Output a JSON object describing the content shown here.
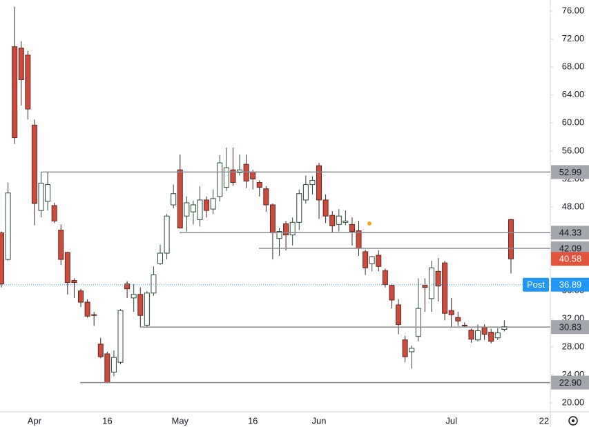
{
  "chart_data": {
    "type": "candlestick",
    "categories": [
      null,
      null,
      null,
      null,
      null,
      "Apr",
      null,
      null,
      null,
      null,
      null,
      null,
      null,
      null,
      null,
      null,
      "16",
      null,
      null,
      null,
      null,
      null,
      null,
      null,
      null,
      null,
      null,
      "May",
      null,
      null,
      null,
      null,
      null,
      null,
      null,
      null,
      null,
      null,
      "16",
      null,
      null,
      null,
      null,
      null,
      null,
      null,
      null,
      null,
      "Jun",
      null,
      null,
      null,
      null,
      null,
      null,
      null,
      null,
      null,
      null,
      null,
      null,
      null,
      null,
      null,
      null,
      null,
      null,
      null,
      "Jul",
      null,
      null,
      null,
      null,
      null,
      null,
      null,
      null,
      null,
      null,
      null,
      null,
      null,
      "22"
    ],
    "open": [
      44.3,
      40.5,
      70.9,
      70.7,
      69.7,
      59.7,
      47.5,
      48.8,
      48.2,
      44.7,
      41.5,
      37.5,
      36.0,
      34.4,
      32.6,
      28.4,
      27.0,
      24.4,
      25.8,
      37.0,
      35.0,
      35.5,
      31.1,
      35.7,
      39.9,
      41.4,
      48.3,
      53.3,
      46.7,
      47.3,
      46.2,
      49.0,
      47.7,
      49.5,
      50.8,
      53.3,
      52.9,
      54.1,
      53.0,
      51.5,
      50.6,
      48.3,
      43.5,
      45.6,
      44.0,
      45.8,
      49.0,
      51.2,
      53.9,
      49.0,
      46.8,
      45.5,
      45.8,
      45.5,
      44.6,
      41.6,
      39.9,
      41.1,
      38.9,
      36.8,
      34.0,
      29.0,
      27.3,
      29.5,
      36.8,
      34.9,
      38.8,
      40.0,
      33.2,
      32.2,
      31.1,
      30.4,
      29.0,
      30.8,
      30.1,
      29.3,
      30.5,
      46.2,
      null,
      null,
      null,
      null,
      null
    ],
    "high": [
      44.5,
      51.5,
      76.6,
      71.7,
      70.3,
      60.5,
      53.0,
      53.0,
      48.6,
      45.5,
      41.6,
      37.8,
      36.3,
      34.8,
      33.0,
      29.3,
      27.3,
      27.5,
      33.4,
      37.4,
      37.0,
      36.5,
      36.0,
      39.5,
      42.6,
      47.0,
      51.2,
      55.5,
      49.5,
      48.9,
      51.0,
      49.5,
      50.5,
      55.4,
      56.5,
      56.5,
      55.5,
      55.5,
      53.3,
      51.8,
      51.0,
      48.5,
      45.0,
      46.0,
      46.5,
      50.5,
      52.5,
      52.4,
      54.3,
      49.8,
      47.4,
      47.7,
      47.5,
      46.5,
      46.0,
      41.9,
      41.0,
      41.8,
      39.2,
      37.0,
      34.8,
      29.6,
      28.2,
      37.8,
      37.8,
      40.3,
      40.7,
      40.3,
      35.0,
      33.0,
      31.5,
      30.6,
      31.2,
      31.2,
      30.6,
      30.7,
      31.8,
      46.3,
      null,
      null,
      null,
      null,
      null
    ],
    "low": [
      36.5,
      40.3,
      57.0,
      62.5,
      60.5,
      45.4,
      46.5,
      47.5,
      45.7,
      39.7,
      35.5,
      35.0,
      33.7,
      32.2,
      31.0,
      26.4,
      22.8,
      23.8,
      25.5,
      35.0,
      33.0,
      30.9,
      30.9,
      35.3,
      39.7,
      40.5,
      47.8,
      44.9,
      44.5,
      45.5,
      45.2,
      46.5,
      47.0,
      48.8,
      50.3,
      51.0,
      52.5,
      50.7,
      50.5,
      49.5,
      47.3,
      40.5,
      41.0,
      41.8,
      42.5,
      44.7,
      48.5,
      49.8,
      46.3,
      45.7,
      44.4,
      44.5,
      45.4,
      42.5,
      41.0,
      38.3,
      38.8,
      38.8,
      36.5,
      33.5,
      29.8,
      25.8,
      24.9,
      28.8,
      33.0,
      33.0,
      34.5,
      31.8,
      30.9,
      31.0,
      30.8,
      28.6,
      28.8,
      29.0,
      28.5,
      29.0,
      30.2,
      38.5,
      null,
      null,
      null,
      null,
      null
    ],
    "close": [
      37.0,
      50.0,
      57.9,
      66.2,
      62.0,
      48.5,
      51.4,
      51.2,
      46.0,
      40.5,
      37.2,
      37.2,
      34.4,
      32.4,
      32.5,
      26.6,
      22.9,
      26.5,
      33.2,
      36.3,
      35.5,
      32.5,
      35.7,
      38.3,
      41.4,
      46.7,
      49.9,
      45.0,
      48.6,
      48.3,
      49.0,
      47.5,
      49.2,
      54.3,
      53.6,
      51.5,
      53.3,
      51.7,
      52.0,
      50.8,
      48.3,
      44.3,
      44.5,
      44.0,
      45.8,
      49.9,
      51.2,
      51.8,
      49.0,
      46.7,
      45.3,
      46.7,
      46.0,
      44.5,
      42.1,
      39.3,
      40.9,
      39.5,
      36.9,
      34.7,
      31.2,
      26.6,
      27.8,
      33.5,
      36.5,
      39.3,
      36.7,
      32.8,
      32.6,
      31.7,
      31.0,
      29.1,
      30.3,
      29.8,
      28.8,
      30.0,
      30.9,
      40.58,
      null,
      null,
      null,
      null,
      null
    ],
    "up_color": "#ffffff",
    "down_color": "#cf4a3b",
    "ylim": [
      18.72,
      77.58
    ],
    "yticks": [
      {
        "value": 20,
        "label": "20.00"
      },
      {
        "value": 24,
        "label": "24.00"
      },
      {
        "value": 28,
        "label": "28.00"
      },
      {
        "value": 32,
        "label": "32.00"
      },
      {
        "value": 36,
        "label": "36.00"
      },
      {
        "value": 40,
        "label": "40.00"
      },
      {
        "value": 44,
        "label": "44.00"
      },
      {
        "value": 48,
        "label": "48.00"
      },
      {
        "value": 52,
        "label": "52.00"
      },
      {
        "value": 56,
        "label": "56.00"
      },
      {
        "value": 60,
        "label": "60.00"
      },
      {
        "value": 64,
        "label": "64.00"
      },
      {
        "value": 68,
        "label": "68.00"
      },
      {
        "value": 72,
        "label": "72.00"
      },
      {
        "value": 76,
        "label": "76.00"
      }
    ],
    "levels": [
      52.99,
      44.33,
      42.09,
      30.83,
      {
        "value": 22.9,
        "label": "22.90"
      }
    ],
    "level_color": "#878b91",
    "last_price": 40.58,
    "last_price_color": "#e0533c",
    "post": {
      "label": "Post",
      "value": 36.89,
      "color": "#2196f3"
    }
  }
}
